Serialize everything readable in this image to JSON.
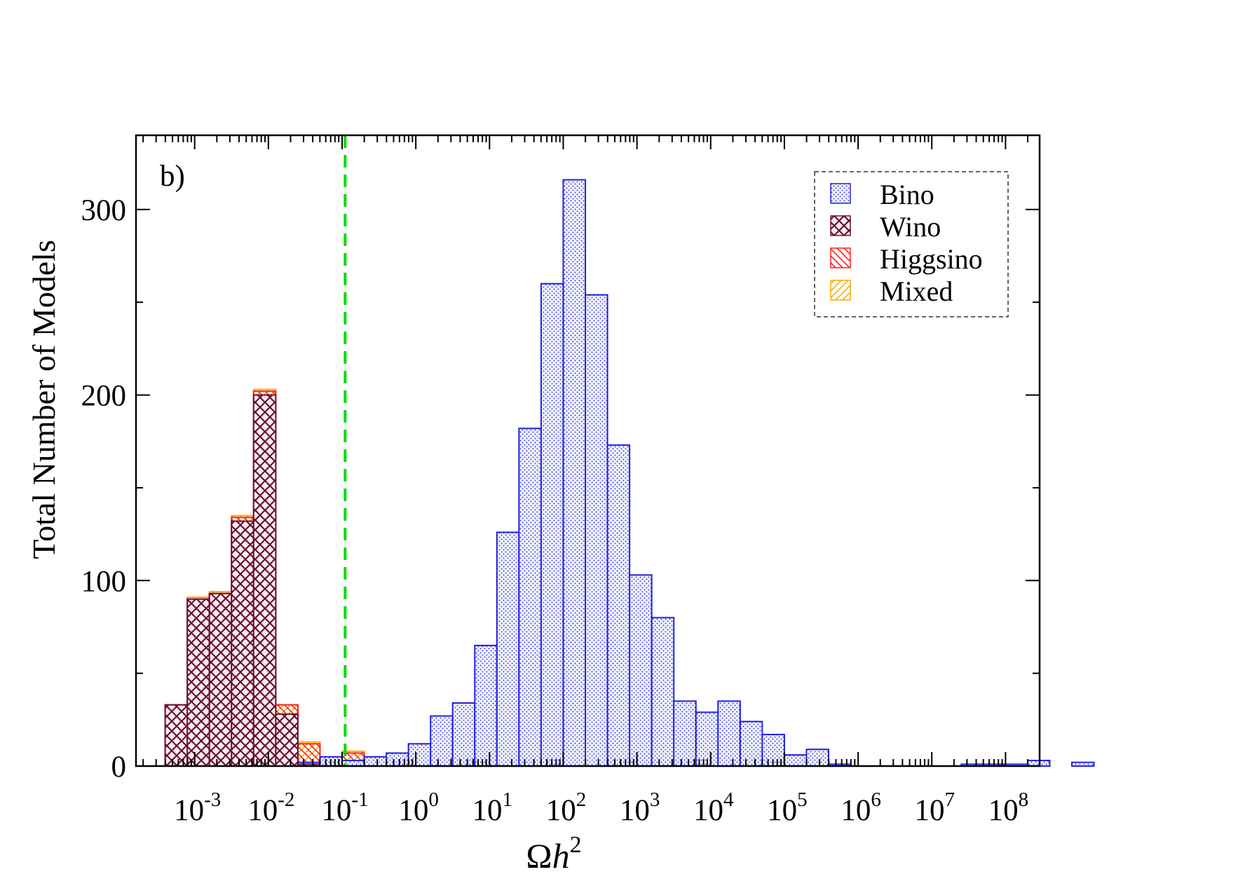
{
  "chart_data": {
    "type": "bar",
    "panel_label": "b)",
    "xlabel": "Ωh²",
    "xlabel_omega": "Ω",
    "xlabel_h": "h",
    "xlabel_exp": "2",
    "ylabel": "Total Number of Models",
    "xscale": "log",
    "xlim": [
      0.00016,
      290000000.0
    ],
    "ylim": [
      0,
      340
    ],
    "grid": false,
    "legend_position": "top-right",
    "reference_line": {
      "x": 0.11,
      "color": "#00dd00",
      "style": "dashed"
    },
    "x_ticks": [
      {
        "base": "10",
        "exp": "-3"
      },
      {
        "base": "10",
        "exp": "-2"
      },
      {
        "base": "10",
        "exp": "-1"
      },
      {
        "base": "10",
        "exp": "0"
      },
      {
        "base": "10",
        "exp": "1"
      },
      {
        "base": "10",
        "exp": "2"
      },
      {
        "base": "10",
        "exp": "3"
      },
      {
        "base": "10",
        "exp": "4"
      },
      {
        "base": "10",
        "exp": "5"
      },
      {
        "base": "10",
        "exp": "6"
      },
      {
        "base": "10",
        "exp": "7"
      },
      {
        "base": "10",
        "exp": "8"
      }
    ],
    "y_ticks": [
      "0",
      "100",
      "200",
      "300"
    ],
    "bin_log_width": 0.3,
    "bin_log_start": -3.4,
    "series": [
      {
        "name": "Bino",
        "color": "#2222dd",
        "fill": "#eef0ff",
        "pattern": "dots",
        "bin_index_start": 0,
        "values": [
          0,
          0,
          0,
          1,
          1,
          1,
          2,
          5,
          3,
          5,
          7,
          12,
          27,
          34,
          65,
          126,
          182,
          260,
          316,
          254,
          173,
          103,
          80,
          35,
          29,
          35,
          24,
          17,
          6,
          9,
          1,
          0,
          0,
          0,
          0,
          0,
          1,
          1,
          1,
          3,
          0,
          2
        ]
      },
      {
        "name": "Wino",
        "color": "#6b1030",
        "fill": "#f6eef2",
        "pattern": "crosshatch",
        "bin_index_start": 0,
        "values": [
          33,
          90,
          93,
          132,
          200,
          28,
          1,
          0,
          0
        ]
      },
      {
        "name": "Higgsino",
        "color": "#ff2020",
        "pattern": "hatch-back",
        "bin_index_start": 0,
        "values": [
          33,
          90,
          93,
          134,
          202,
          33,
          12,
          3,
          7
        ]
      },
      {
        "name": "Mixed",
        "color": "#ffaa00",
        "pattern": "hatch-fwd",
        "bin_index_start": 0,
        "values": [
          33,
          91,
          94,
          135,
          203,
          33,
          13,
          3,
          8
        ]
      }
    ]
  }
}
